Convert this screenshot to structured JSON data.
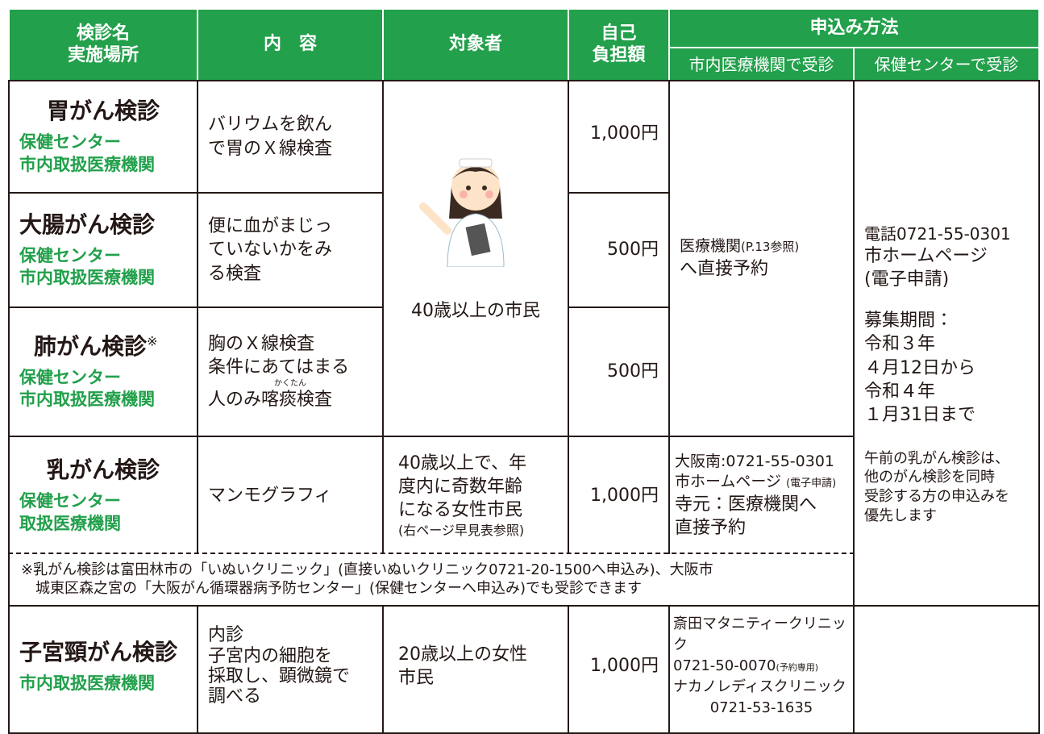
{
  "header": {
    "name": "検診名",
    "place": "実施場所",
    "content": "内　容",
    "target": "対象者",
    "cost": [
      "自己",
      "負担額"
    ],
    "apply": "申込み方法",
    "apply_clinic": "市内医療機関で受診",
    "apply_center": "保健センターで受診"
  },
  "rows": [
    {
      "name": "胃がん検診",
      "places": [
        "保健センター",
        "市内取扱医療機関"
      ],
      "content": [
        "バリウムを飲ん",
        "で胃のＸ線検査"
      ],
      "cost": "1,000円"
    },
    {
      "name": "大腸がん検診",
      "places": [
        "保健センター",
        "市内取扱医療機関"
      ],
      "content": [
        "便に血がまじっ",
        "ていないかをみ",
        "る検査"
      ],
      "cost": "500円"
    },
    {
      "name": "肺がん検診",
      "mark": "※",
      "places": [
        "保健センター",
        "市内取扱医療機関"
      ],
      "content": [
        "胸のＸ線検査",
        "条件にあてはまる",
        "人のみ喀痰検査"
      ],
      "ruby": "かくたん",
      "cost": "500円"
    },
    {
      "name": "乳がん検診",
      "places": [
        "保健センター",
        "取扱医療機関"
      ],
      "content": [
        "マンモグラフィ"
      ],
      "target": [
        "40歳以上で、年",
        "度内に奇数年齢",
        "になる女性市民",
        "(右ページ早見表参照)"
      ],
      "cost": "1,000円",
      "clinic": [
        "大阪南:0721-55-0301",
        "市ホームページ",
        "寺元：医療機関へ",
        "直接予約"
      ],
      "clinic_small": "(電子申請)"
    },
    {
      "name": "子宮頸がん検診",
      "places": [
        "市内取扱医療機関"
      ],
      "content": [
        "内診",
        "子宮内の細胞を",
        "採取し、顕微鏡で",
        "調べる"
      ],
      "target": [
        "20歳以上の女性",
        "市民"
      ],
      "cost": "1,000円",
      "clinic": [
        "斎田マタニティークリニック",
        "0721-50-0070",
        "ナカノレディスクリニック",
        "0721-53-1635"
      ],
      "clinic_small": "(予約専用)"
    }
  ],
  "shared": {
    "target": "40歳以上の市民",
    "clinic": [
      "医療機関",
      "へ直接予約"
    ],
    "clinic_small": "(P.13参照)",
    "center": [
      "電話0721-55-0301",
      "市ホームページ",
      "(電子申請)"
    ],
    "period": [
      "募集期間：",
      "令和３年",
      "４月12日から",
      "令和４年",
      "１月31日まで"
    ],
    "center_note": [
      "午前の乳がん検診は、",
      "他のがん検診を同時",
      "受診する方の申込みを",
      "優先します"
    ]
  },
  "footnote": [
    "※乳がん検診は富田林市の「いぬいクリニック」(直接いぬいクリニック0721-20-1500へ申込み)、大阪市",
    "城東区森之宮の「大阪がん循環器病予防センター」(保健センターへ申込み)でも受診できます"
  ]
}
